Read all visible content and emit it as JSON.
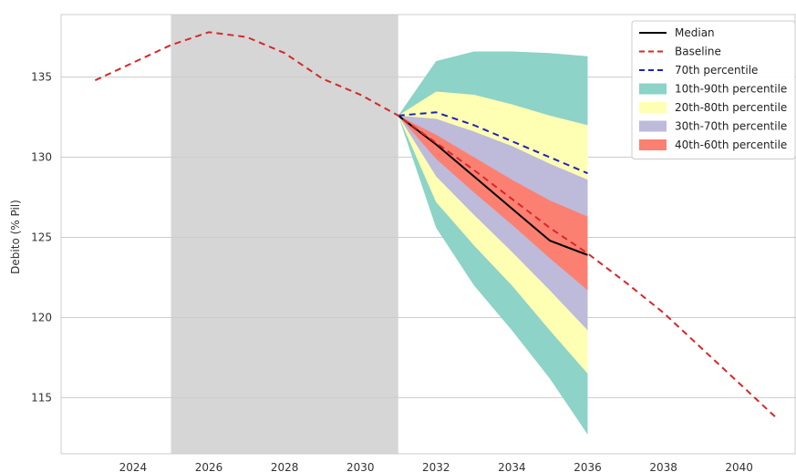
{
  "chart_data": {
    "type": "line",
    "title": "",
    "xlabel": "",
    "ylabel": "Debito (% Pil)",
    "xlim": [
      2022.1,
      2041.5
    ],
    "ylim": [
      111.5,
      138.9
    ],
    "xticks": [
      2024,
      2026,
      2028,
      2030,
      2032,
      2034,
      2036,
      2038,
      2040
    ],
    "yticks": [
      115,
      120,
      125,
      130,
      135
    ],
    "grid": "horizontal",
    "legend_position": "top-right",
    "shaded_region": {
      "x_start": 2025,
      "x_end": 2031,
      "color": "#d6d6d6"
    },
    "colors": {
      "median": "#000000",
      "baseline": "#d62728",
      "p70": "#1f1fbf",
      "band_10_90": "#8dd3c7",
      "band_20_80": "#ffffb3",
      "band_30_70": "#bebada",
      "band_40_60": "#fb8072"
    },
    "series": [
      {
        "name": "Median",
        "style": "solid",
        "x": [
          2031,
          2032,
          2033,
          2034,
          2035,
          2036
        ],
        "y": [
          132.6,
          130.8,
          128.8,
          126.8,
          124.8,
          123.9
        ]
      },
      {
        "name": "Baseline",
        "style": "dashed",
        "x": [
          2023,
          2024,
          2025,
          2026,
          2027,
          2028,
          2029,
          2030,
          2031,
          2032,
          2033,
          2034,
          2035,
          2036,
          2037,
          2038,
          2039,
          2040,
          2041
        ],
        "y": [
          134.8,
          135.9,
          137.0,
          137.8,
          137.5,
          136.5,
          134.9,
          133.9,
          132.6,
          130.9,
          129.2,
          127.4,
          125.6,
          124.0,
          122.2,
          120.3,
          118.1,
          115.9,
          113.7
        ]
      },
      {
        "name": "70th percentile",
        "style": "dashed",
        "x": [
          2031,
          2032,
          2033,
          2034,
          2035,
          2036
        ],
        "y": [
          132.6,
          132.8,
          132.0,
          131.0,
          130.0,
          129.0
        ]
      }
    ],
    "bands": [
      {
        "name": "10th-90th percentile",
        "x": [
          2031,
          2032,
          2033,
          2034,
          2035,
          2036
        ],
        "upper": [
          132.6,
          136.0,
          136.6,
          136.6,
          136.5,
          136.3
        ],
        "lower": [
          132.6,
          125.6,
          122.0,
          119.2,
          116.2,
          112.7
        ]
      },
      {
        "name": "20th-80th percentile",
        "x": [
          2031,
          2032,
          2033,
          2034,
          2035,
          2036
        ],
        "upper": [
          132.6,
          134.1,
          133.9,
          133.3,
          132.6,
          132.0
        ],
        "lower": [
          132.6,
          127.2,
          124.5,
          122.0,
          119.2,
          116.5
        ]
      },
      {
        "name": "30th-70th percentile",
        "x": [
          2031,
          2032,
          2033,
          2034,
          2035,
          2036
        ],
        "upper": [
          132.6,
          132.4,
          131.6,
          130.7,
          129.6,
          128.6
        ],
        "lower": [
          132.6,
          128.8,
          126.4,
          124.1,
          121.7,
          119.2
        ]
      },
      {
        "name": "40th-60th percentile",
        "x": [
          2031,
          2032,
          2033,
          2034,
          2035,
          2036
        ],
        "upper": [
          132.6,
          131.4,
          130.0,
          128.6,
          127.3,
          126.3
        ],
        "lower": [
          132.6,
          129.9,
          127.8,
          125.8,
          123.7,
          121.7
        ]
      }
    ],
    "legend": [
      {
        "label": "Median",
        "kind": "line",
        "key": "median"
      },
      {
        "label": "Baseline",
        "kind": "dashed",
        "key": "baseline"
      },
      {
        "label": "70th percentile",
        "kind": "dashed",
        "key": "p70"
      },
      {
        "label": "10th-90th percentile",
        "kind": "patch",
        "key": "band_10_90"
      },
      {
        "label": "20th-80th percentile",
        "kind": "patch",
        "key": "band_20_80"
      },
      {
        "label": "30th-70th percentile",
        "kind": "patch",
        "key": "band_30_70"
      },
      {
        "label": "40th-60th percentile",
        "kind": "patch",
        "key": "band_40_60"
      }
    ]
  }
}
